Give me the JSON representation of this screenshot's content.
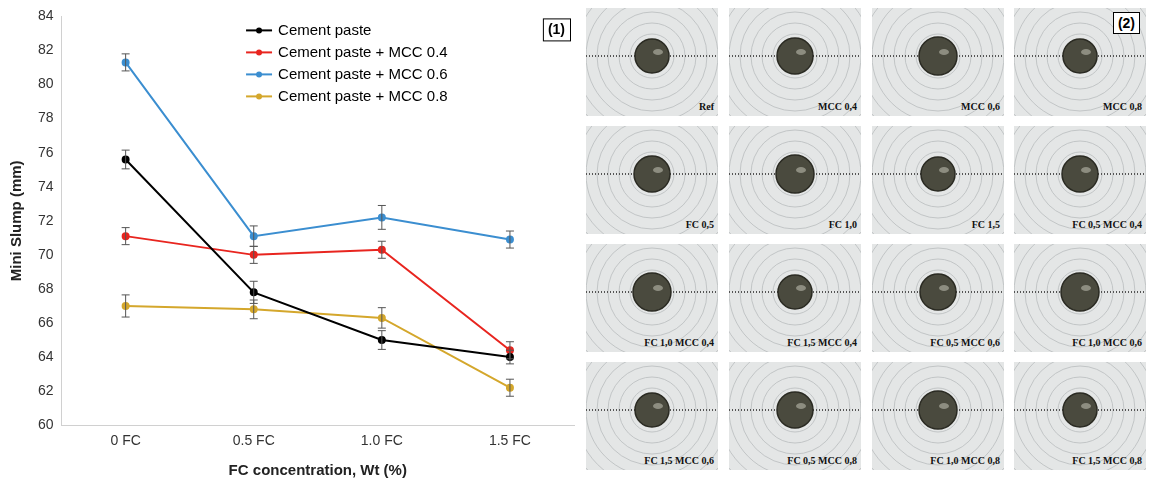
{
  "chart_data": {
    "type": "line",
    "panel_label": "(1)",
    "x_label": "FC concentration, Wt (%)",
    "y_label": "Mini Slump (mm)",
    "categories": [
      "0 FC",
      "0.5 FC",
      "1.0 FC",
      "1.5 FC"
    ],
    "series": [
      {
        "name": "Cement paste",
        "color": "#000000",
        "marker": "circle",
        "values": [
          75.6,
          67.8,
          65.0,
          64.0
        ],
        "errors": [
          0.55,
          0.65,
          0.55,
          0.4
        ]
      },
      {
        "name": "Cement paste + MCC 0.4",
        "color": "#e8251f",
        "marker": "circle",
        "values": [
          71.1,
          70.0,
          70.3,
          64.4
        ],
        "errors": [
          0.5,
          0.5,
          0.5,
          0.5
        ]
      },
      {
        "name": "Cement paste + MCC 0.6",
        "color": "#3b8ed0",
        "marker": "circle",
        "values": [
          81.3,
          71.1,
          72.2,
          70.9
        ],
        "errors": [
          0.5,
          0.6,
          0.7,
          0.5
        ]
      },
      {
        "name": "Cement paste + MCC 0.8",
        "color": "#d4a72c",
        "marker": "circle",
        "values": [
          67.0,
          66.8,
          66.3,
          62.2
        ],
        "errors": [
          0.65,
          0.55,
          0.6,
          0.5
        ]
      }
    ],
    "ylim": [
      60,
      84
    ],
    "yticks": [
      60,
      62,
      64,
      66,
      68,
      70,
      72,
      74,
      76,
      78,
      80,
      82,
      84
    ],
    "grid": false,
    "legend": "upper center"
  },
  "photo_panel": {
    "panel_label": "(2)",
    "photos": [
      "Ref",
      "MCC 0,4",
      "MCC 0,6",
      "MCC 0,8",
      "FC 0,5",
      "FC 1,0",
      "FC 1,5",
      "FC 0,5 MCC 0,4",
      "FC 1,0 MCC 0,4",
      "FC 1,5 MCC 0,4",
      "FC 0,5 MCC 0,6",
      "FC 1,0 MCC 0,6",
      "FC 1,5 MCC 0,6",
      "FC 0,5 MCC 0,8",
      "FC 1,0 MCC 0,8",
      "FC 1,5 MCC 0,8"
    ]
  }
}
